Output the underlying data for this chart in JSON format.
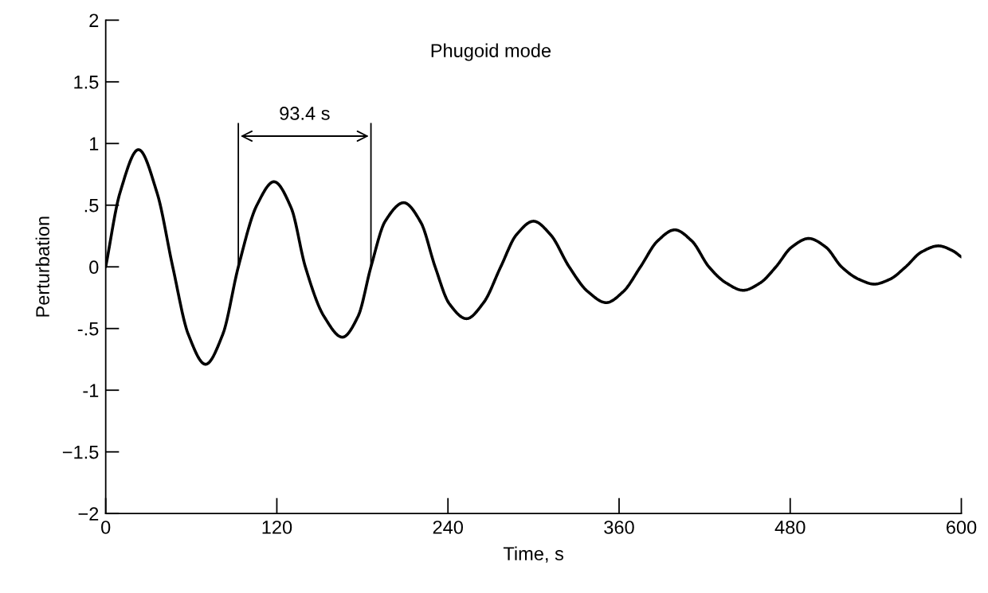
{
  "chart_data": {
    "type": "line",
    "title": "Phugoid mode",
    "xlabel": "Time, s",
    "ylabel": "Perturbation",
    "xlim": [
      0,
      600
    ],
    "ylim": [
      -2,
      2
    ],
    "xticks": [
      0,
      120,
      240,
      360,
      480,
      600
    ],
    "yticks": [
      {
        "value": -2,
        "label": "−2"
      },
      {
        "value": -1.5,
        "label": "−1.5"
      },
      -1,
      {
        "value": -0.5,
        "label": "-.5"
      },
      0,
      {
        "value": 0.5,
        "label": ".5"
      },
      1,
      1.5,
      2
    ],
    "grid": false,
    "legend": false,
    "marker": "none",
    "line_style": "solid",
    "annotations": [
      "93.4 s"
    ],
    "series": [
      {
        "color": "#000000",
        "x": [
          0,
          10,
          23,
          36,
          47,
          58,
          70,
          82,
          93,
          106,
          118,
          130,
          140,
          153,
          166,
          177,
          186,
          196,
          209,
          221,
          231,
          241,
          253,
          265,
          277,
          288,
          300,
          312,
          325,
          338,
          351,
          363,
          375,
          387,
          399,
          411,
          423,
          435,
          447,
          459,
          470,
          481,
          493,
          505,
          516,
          528,
          539,
          550,
          561,
          572,
          584,
          594,
          600
        ],
        "values": [
          0,
          0.6,
          0.95,
          0.6,
          0,
          -0.55,
          -0.79,
          -0.55,
          0,
          0.5,
          0.69,
          0.48,
          0,
          -0.4,
          -0.57,
          -0.4,
          0,
          0.37,
          0.52,
          0.36,
          0,
          -0.3,
          -0.42,
          -0.29,
          0,
          0.26,
          0.37,
          0.26,
          0,
          -0.2,
          -0.29,
          -0.2,
          0,
          0.21,
          0.3,
          0.21,
          0,
          -0.13,
          -0.19,
          -0.13,
          0,
          0.16,
          0.23,
          0.16,
          0,
          -0.1,
          -0.14,
          -0.1,
          0,
          0.12,
          0.17,
          0.13,
          0.08
        ]
      }
    ]
  }
}
